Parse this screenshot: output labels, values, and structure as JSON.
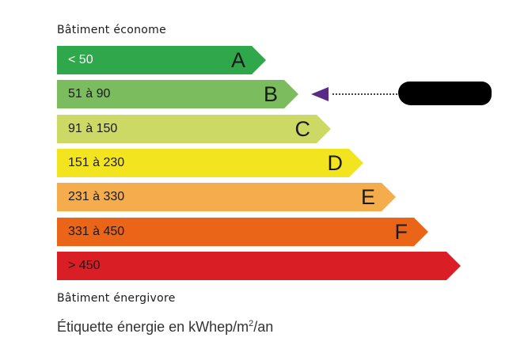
{
  "top_label": "Bâtiment économe",
  "bottom_label": "Bâtiment énergivore",
  "footer": {
    "text": "Étiquette énergie en kWhep/m",
    "sup": "2",
    "suffix": "/an"
  },
  "classes": [
    {
      "range": "< 50",
      "letter": "A",
      "color": "#2ea84a",
      "text_color": "#ffffff"
    },
    {
      "range": "51 à 90",
      "letter": "B",
      "color": "#7bbd5e",
      "text_color": "#1a1a1a"
    },
    {
      "range": "91 à 150",
      "letter": "C",
      "color": "#cdd965",
      "text_color": "#1a1a1a"
    },
    {
      "range": "151 à 230",
      "letter": "D",
      "color": "#f2e51f",
      "text_color": "#1a1a1a"
    },
    {
      "range": "231 à 330",
      "letter": "E",
      "color": "#f4ac4d",
      "text_color": "#1a1a1a"
    },
    {
      "range": "331 à 450",
      "letter": "F",
      "color": "#ea6518",
      "text_color": "#1a1a1a"
    },
    {
      "range": "> 450",
      "letter": "",
      "color": "#d91f25",
      "text_color": "#1a1a1a"
    }
  ],
  "indicator": {
    "class": "B",
    "color": "#5b2a86",
    "value_redacted": true
  }
}
